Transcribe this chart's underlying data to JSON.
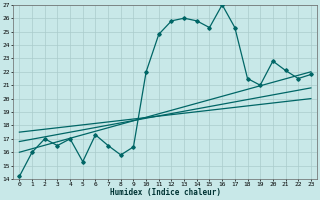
{
  "xlabel": "Humidex (Indice chaleur)",
  "bg_color": "#c8e8e8",
  "grid_color": "#aacccc",
  "line_color": "#006666",
  "xlim": [
    -0.5,
    23.5
  ],
  "ylim": [
    14,
    27
  ],
  "xticks": [
    0,
    1,
    2,
    3,
    4,
    5,
    6,
    7,
    8,
    9,
    10,
    11,
    12,
    13,
    14,
    15,
    16,
    17,
    18,
    19,
    20,
    21,
    22,
    23
  ],
  "yticks": [
    14,
    15,
    16,
    17,
    18,
    19,
    20,
    21,
    22,
    23,
    24,
    25,
    26,
    27
  ],
  "curve1_x": [
    0,
    1,
    2,
    3,
    4,
    5,
    6,
    7,
    8,
    9,
    10,
    11,
    12,
    13,
    14,
    15,
    16,
    17,
    18,
    19,
    20,
    21,
    22,
    23
  ],
  "curve1_y": [
    14.2,
    16.0,
    17.0,
    16.5,
    17.0,
    15.3,
    17.3,
    16.5,
    15.8,
    16.4,
    22.0,
    24.8,
    25.8,
    26.0,
    25.8,
    25.3,
    27.0,
    25.3,
    21.5,
    21.0,
    22.8,
    22.1,
    21.5,
    21.8
  ],
  "line2_x": [
    0,
    23
  ],
  "line2_y": [
    16.0,
    22.0
  ],
  "line3_x": [
    0,
    23
  ],
  "line3_y": [
    16.8,
    20.8
  ],
  "line4_x": [
    0,
    23
  ],
  "line4_y": [
    17.5,
    20.0
  ]
}
